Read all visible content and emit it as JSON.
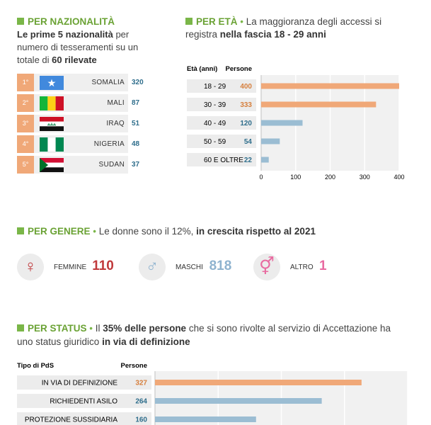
{
  "nazionalita": {
    "header": "PER NAZIONALITÀ",
    "desc_1": "Le prime 5 nazionalità",
    "desc_2": " per numero di tesseramenti su un totale di ",
    "desc_3": "60 rilevate",
    "rows": [
      {
        "rank": "1°",
        "name": "SOMALIA",
        "value": "320",
        "flag": "somalia-flag-icon"
      },
      {
        "rank": "2°",
        "name": "MALI",
        "value": "87",
        "flag": "mali-flag-icon"
      },
      {
        "rank": "3°",
        "name": "IRAQ",
        "value": "51",
        "flag": "iraq-flag-icon"
      },
      {
        "rank": "4°",
        "name": "NIGERIA",
        "value": "48",
        "flag": "nigeria-flag-icon"
      },
      {
        "rank": "5°",
        "name": "SUDAN",
        "value": "37",
        "flag": "sudan-flag-icon"
      }
    ]
  },
  "eta": {
    "header": "PER ETÀ",
    "desc_1": " La maggioranza degli accessi si registra ",
    "desc_2": "nella fascia 18 - 29 anni"
  },
  "genere": {
    "header": "PER GENERE",
    "desc_1": " Le donne sono il 12%, ",
    "desc_2": "in crescita rispetto al 2021",
    "items": [
      {
        "label": "FEMMINE",
        "value": "110",
        "symbol": "♀",
        "icon": "female-icon",
        "color": "#c0393b"
      },
      {
        "label": "MASCHI",
        "value": "818",
        "symbol": "♂",
        "icon": "male-icon",
        "color": "#8fb3cf"
      },
      {
        "label": "ALTRO",
        "value": "1",
        "symbol": "⚥",
        "icon": "other-gender-icon",
        "color": "#e86aa0"
      }
    ]
  },
  "status": {
    "header": "PER STATUS",
    "desc_1": " Il ",
    "desc_2": "35% delle persone",
    "desc_3": " che si sono rivolte al servizio di Accettazione ha uno status giuridico ",
    "desc_4": "in via di definizione"
  },
  "colors": {
    "accent_green": "#7ab648",
    "orange": "#f0a878",
    "blue": "#9bbdd3",
    "value_blue": "#2f6e8c",
    "value_orange": "#d67f3d"
  },
  "chart_data": [
    {
      "type": "bar",
      "orientation": "horizontal",
      "category_header": "Età (anni)",
      "value_header": "Persone",
      "categories": [
        "18 - 29",
        "30 - 39",
        "40 - 49",
        "50 - 59",
        "60 E OLTRE"
      ],
      "values": [
        400,
        333,
        120,
        54,
        22
      ],
      "highlight": [
        true,
        true,
        false,
        false,
        false
      ],
      "xlim": [
        0,
        400
      ],
      "ticks": [
        0,
        100,
        200,
        300,
        400
      ],
      "grid": true
    },
    {
      "type": "bar",
      "orientation": "horizontal",
      "category_header": "Tipo di PdS",
      "value_header": "Persone",
      "categories": [
        "IN VIA DI DEFINIZIONE",
        "RICHIEDENTI ASILO",
        "PROTEZIONE SUSSIDIARIA"
      ],
      "values": [
        327,
        264,
        160
      ],
      "highlight": [
        true,
        false,
        false
      ],
      "xlim": [
        0,
        400
      ],
      "grid": true
    }
  ]
}
